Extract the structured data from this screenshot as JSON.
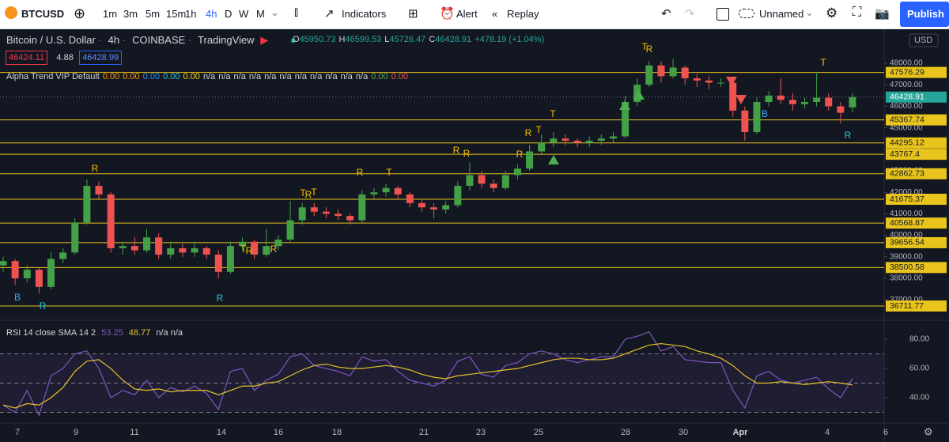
{
  "toolbar": {
    "symbol": "BTCUSD",
    "intervals": [
      "1m",
      "3m",
      "5m",
      "15m",
      "1h",
      "4h",
      "D",
      "W",
      "M"
    ],
    "active_interval": 5,
    "indicators": "Indicators",
    "alert": "Alert",
    "replay": "Replay",
    "layout_name": "Unnamed",
    "publish": "Publish"
  },
  "legend": {
    "title": "Bitcoin / U.S. Dollar",
    "interval": "4h",
    "exchange": "COINBASE",
    "source": "TradingView",
    "ohlc": [
      {
        "label": "O",
        "value": "45950.73"
      },
      {
        "label": "H",
        "value": "46599.53"
      },
      {
        "label": "L",
        "value": "45726.47"
      },
      {
        "label": "C",
        "value": "46428.91"
      }
    ],
    "change": "+478.19 (+1.04%)",
    "bid": "46424.11",
    "spread": "4.88",
    "ask": "46428.99"
  },
  "indicator": {
    "pieces": [
      {
        "text": "Alpha Trend VIP Default",
        "color": "#d1d4dc"
      },
      {
        "text": "0.00",
        "color": "#ff9800"
      },
      {
        "text": "0.00",
        "color": "#ff9800"
      },
      {
        "text": "0.00",
        "color": "#2196f3"
      },
      {
        "text": "0.00",
        "color": "#26c6da"
      },
      {
        "text": "0.00",
        "color": "#f5d000"
      },
      {
        "text": "n/a",
        "color": "#d1d4dc"
      },
      {
        "text": "n/a",
        "color": "#d1d4dc"
      },
      {
        "text": "n/a",
        "color": "#d1d4dc"
      },
      {
        "text": "n/a",
        "color": "#d1d4dc"
      },
      {
        "text": "n/a",
        "color": "#d1d4dc"
      },
      {
        "text": "n/a",
        "color": "#d1d4dc"
      },
      {
        "text": "n/a",
        "color": "#d1d4dc"
      },
      {
        "text": "n/a",
        "color": "#d1d4dc"
      },
      {
        "text": "n/a",
        "color": "#d1d4dc"
      },
      {
        "text": "n/a",
        "color": "#d1d4dc"
      },
      {
        "text": "n/a",
        "color": "#d1d4dc"
      },
      {
        "text": "0.00",
        "color": "#4caf50"
      },
      {
        "text": "0.00",
        "color": "#ef5350"
      }
    ]
  },
  "chart_data": {
    "type": "candlestick",
    "up_color": "#43a047",
    "down_color": "#ef5350",
    "candles": [
      [
        38600,
        39000,
        38300,
        38800
      ],
      [
        38800,
        38900,
        37700,
        38000
      ],
      [
        38000,
        38600,
        37800,
        38400
      ],
      [
        38400,
        38500,
        37300,
        37600
      ],
      [
        37600,
        39200,
        37500,
        38900
      ],
      [
        38900,
        39400,
        38700,
        39200
      ],
      [
        39200,
        40800,
        39100,
        40600
      ],
      [
        40600,
        42600,
        40500,
        42300
      ],
      [
        42300,
        42500,
        41700,
        41900
      ],
      [
        41900,
        42000,
        39200,
        39400
      ],
      [
        39400,
        39700,
        39100,
        39500
      ],
      [
        39500,
        39900,
        39100,
        39300
      ],
      [
        39300,
        40300,
        39200,
        39900
      ],
      [
        39900,
        40100,
        38900,
        39100
      ],
      [
        39100,
        39700,
        38900,
        39400
      ],
      [
        39400,
        39600,
        39000,
        39200
      ],
      [
        39200,
        39700,
        39000,
        39400
      ],
      [
        39400,
        39500,
        38900,
        39100
      ],
      [
        39100,
        39300,
        38000,
        38300
      ],
      [
        38300,
        39700,
        38200,
        39500
      ],
      [
        39500,
        39900,
        39300,
        39700
      ],
      [
        39700,
        39800,
        38900,
        39100
      ],
      [
        39100,
        40300,
        39000,
        39500
      ],
      [
        39500,
        40000,
        39300,
        39800
      ],
      [
        39800,
        41600,
        39700,
        40700
      ],
      [
        40700,
        41500,
        40500,
        41300
      ],
      [
        41300,
        41500,
        40900,
        41100
      ],
      [
        41100,
        41300,
        40800,
        41000
      ],
      [
        41000,
        41200,
        40700,
        40900
      ],
      [
        40900,
        41000,
        40500,
        40700
      ],
      [
        40700,
        42100,
        40600,
        41900
      ],
      [
        41900,
        42200,
        41700,
        42000
      ],
      [
        42000,
        42400,
        41800,
        42200
      ],
      [
        42200,
        42300,
        41700,
        41900
      ],
      [
        41900,
        42000,
        41300,
        41500
      ],
      [
        41500,
        41700,
        41100,
        41300
      ],
      [
        41300,
        41500,
        40800,
        41200
      ],
      [
        41200,
        41600,
        41000,
        41400
      ],
      [
        41400,
        42500,
        41300,
        42300
      ],
      [
        42300,
        43400,
        42100,
        42800
      ],
      [
        42800,
        43000,
        42200,
        42400
      ],
      [
        42400,
        42600,
        42000,
        42200
      ],
      [
        42200,
        43000,
        42100,
        42800
      ],
      [
        42800,
        43300,
        42600,
        43100
      ],
      [
        43100,
        44200,
        43000,
        43900
      ],
      [
        43900,
        44700,
        43800,
        44300
      ],
      [
        44300,
        44800,
        44100,
        44500
      ],
      [
        44500,
        44700,
        44200,
        44400
      ],
      [
        44400,
        44500,
        44100,
        44300
      ],
      [
        44300,
        44600,
        44100,
        44400
      ],
      [
        44400,
        44700,
        44200,
        44500
      ],
      [
        44500,
        44800,
        44300,
        44600
      ],
      [
        44600,
        46500,
        44500,
        46200
      ],
      [
        46200,
        47300,
        46000,
        47000
      ],
      [
        47000,
        48100,
        46900,
        47900
      ],
      [
        47900,
        48100,
        47100,
        47400
      ],
      [
        47400,
        48200,
        47300,
        47800
      ],
      [
        47800,
        47900,
        47000,
        47300
      ],
      [
        47300,
        47500,
        46900,
        47200
      ],
      [
        47200,
        47400,
        46800,
        47100
      ],
      [
        47100,
        47300,
        46900,
        47100
      ],
      [
        47100,
        47200,
        45500,
        45800
      ],
      [
        45800,
        46000,
        44400,
        44800
      ],
      [
        44800,
        46400,
        44700,
        46200
      ],
      [
        46200,
        46700,
        46000,
        46500
      ],
      [
        46500,
        47300,
        46100,
        46300
      ],
      [
        46300,
        46600,
        45800,
        46100
      ],
      [
        46100,
        46400,
        45900,
        46200
      ],
      [
        46200,
        47600,
        46000,
        46400
      ],
      [
        46400,
        46600,
        45800,
        46000
      ],
      [
        46000,
        46200,
        45200,
        45700
      ],
      [
        45950.73,
        46599.53,
        45726.47,
        46428.91
      ]
    ],
    "ylim": [
      36050,
      49620
    ],
    "currency": "USD",
    "yticks": [
      {
        "value": 37000,
        "label": "37000.00"
      },
      {
        "value": 38000,
        "label": "38000.00"
      },
      {
        "value": 39000,
        "label": "39000.00"
      },
      {
        "value": 40000,
        "label": "40000.00"
      },
      {
        "value": 41000,
        "label": "41000.00"
      },
      {
        "value": 42000,
        "label": "42000.00"
      },
      {
        "value": 43000,
        "label": "43000.00"
      },
      {
        "value": 44000,
        "label": "44000.00"
      },
      {
        "value": 45000,
        "label": "45000.00"
      },
      {
        "value": 46000,
        "label": "46000.00"
      },
      {
        "value": 47000,
        "label": "47000.00"
      },
      {
        "value": 48000,
        "label": "48000.00"
      }
    ],
    "levels": [
      47576.29,
      45367.74,
      44295.12,
      43767.4,
      42862.73,
      41675.37,
      40568.87,
      39656.54,
      38500.58,
      36711.77
    ],
    "level_color": "#e8c41c",
    "last_price": 46428.91,
    "signals": [
      {
        "label": "B",
        "color": "#42a5f5"
      },
      {
        "label": "R",
        "color": "#26c6da"
      },
      {
        "label": "R",
        "color": "#f5c000"
      },
      {
        "label": "R",
        "color": "#26c6da"
      },
      {
        "label": "T",
        "color": "#f5c000"
      },
      {
        "label": "R",
        "color": "#f5c000"
      },
      {
        "label": "R",
        "color": "#f5c000"
      },
      {
        "label": "T",
        "color": "#f5c000"
      },
      {
        "label": "R",
        "color": "#f5c000"
      },
      {
        "label": "T",
        "color": "#f5c000"
      },
      {
        "label": "R",
        "color": "#f5c000"
      },
      {
        "label": "T",
        "color": "#f5c000"
      },
      {
        "label": "R",
        "color": "#f5c000"
      },
      {
        "label": "R",
        "color": "#f5c000"
      },
      {
        "label": "R",
        "color": "#f5c000"
      },
      {
        "label": "R",
        "color": "#f5c000"
      },
      {
        "label": "T",
        "color": "#f5c000"
      },
      {
        "label": "T",
        "color": "#f5c000"
      },
      {
        "label": "T",
        "color": "#f5c000"
      },
      {
        "label": "R",
        "color": "#f5c000"
      },
      {
        "label": "B",
        "color": "#42a5f5"
      },
      {
        "label": "T",
        "color": "#f5c000"
      },
      {
        "label": "R",
        "color": "#26c6da"
      }
    ],
    "x_labels": [
      "7",
      "9",
      "11",
      "14",
      "16",
      "18",
      "21",
      "23",
      "25",
      "28",
      "30",
      "Apr",
      "4",
      "6"
    ]
  },
  "rsi": {
    "title": "RSI 14 close SMA 14 2",
    "rsi_label": "53.25",
    "sma_label": "48.77",
    "extra": "n/a n/a",
    "rsi_color": "#7e57c2",
    "sma_color": "#e6c229",
    "ylim": [
      22.7,
      93
    ],
    "yticks": [
      {
        "value": 40,
        "label": "40.00"
      },
      {
        "value": 60,
        "label": "60.00"
      },
      {
        "value": 80,
        "label": "80.00"
      }
    ],
    "bands": [
      30,
      50,
      70
    ],
    "values": [
      35,
      30,
      45,
      28,
      55,
      60,
      70,
      72,
      60,
      40,
      45,
      42,
      52,
      40,
      47,
      44,
      48,
      43,
      32,
      58,
      60,
      45,
      52,
      56,
      68,
      70,
      62,
      60,
      58,
      55,
      68,
      65,
      66,
      58,
      52,
      50,
      48,
      52,
      65,
      68,
      56,
      54,
      62,
      64,
      70,
      72,
      70,
      66,
      64,
      66,
      68,
      68,
      80,
      82,
      85,
      72,
      75,
      66,
      65,
      64,
      64,
      45,
      33,
      55,
      58,
      52,
      50,
      52,
      54,
      46,
      40,
      53.25
    ],
    "sma": [
      35,
      33,
      36,
      35,
      40,
      47,
      58,
      65,
      66,
      60,
      52,
      46,
      45,
      46,
      44,
      45,
      45,
      45,
      42,
      45,
      48,
      48,
      50,
      51,
      55,
      59,
      62,
      63,
      61,
      60,
      60,
      61,
      62,
      61,
      59,
      56,
      54,
      53,
      55,
      56,
      57,
      58,
      59,
      60,
      62,
      64,
      66,
      67,
      67,
      66,
      66,
      67,
      70,
      73,
      76,
      77,
      76,
      75,
      72,
      70,
      67,
      62,
      55,
      50,
      50,
      51,
      50,
      49,
      50,
      51,
      50,
      48.77
    ]
  }
}
